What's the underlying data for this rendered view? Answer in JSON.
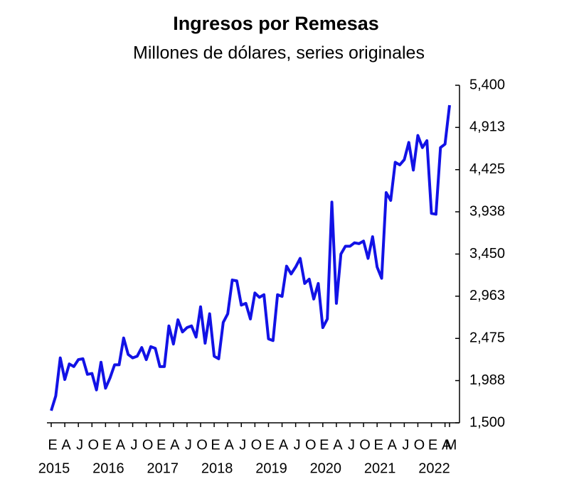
{
  "chart_data": {
    "type": "line",
    "title": "Ingresos por Remesas",
    "subtitle": "Millones de dólares, series originales",
    "categories": [
      "E",
      null,
      null,
      "A",
      null,
      null,
      "J",
      null,
      null,
      "O",
      null,
      null,
      "E",
      null,
      null,
      "A",
      null,
      null,
      "J",
      null,
      null,
      "O",
      null,
      null,
      "E",
      null,
      null,
      "A",
      null,
      null,
      "J",
      null,
      null,
      "O",
      null,
      null,
      "E",
      null,
      null,
      "A",
      null,
      null,
      "J",
      null,
      null,
      "O",
      null,
      null,
      "E",
      null,
      null,
      "A",
      null,
      null,
      "J",
      null,
      null,
      "O",
      null,
      null,
      "E",
      null,
      null,
      "A",
      null,
      null,
      "J",
      null,
      null,
      "O",
      null,
      null,
      "E",
      null,
      null,
      "A",
      null,
      null,
      "J",
      null,
      null,
      "O",
      null,
      null,
      "E",
      null,
      null,
      "A",
      "M"
    ],
    "years": [
      "2015",
      "2016",
      "2017",
      "2018",
      "2019",
      "2020",
      "2021",
      "2022"
    ],
    "series": [
      {
        "color": "#1212e6",
        "values": [
          1640,
          1810,
          2250,
          2000,
          2180,
          2150,
          2230,
          2240,
          2060,
          2070,
          1880,
          2200,
          1900,
          2020,
          2170,
          2170,
          2480,
          2290,
          2250,
          2270,
          2370,
          2230,
          2380,
          2360,
          2150,
          2150,
          2620,
          2410,
          2690,
          2550,
          2600,
          2620,
          2490,
          2840,
          2420,
          2760,
          2270,
          2240,
          2660,
          2760,
          3150,
          3140,
          2860,
          2880,
          2700,
          3000,
          2950,
          2980,
          2470,
          2450,
          2980,
          2960,
          3310,
          3220,
          3300,
          3400,
          3110,
          3160,
          2930,
          3110,
          2600,
          2700,
          4050,
          2880,
          3450,
          3540,
          3540,
          3580,
          3570,
          3600,
          3400,
          3650,
          3300,
          3170,
          4160,
          4070,
          4510,
          4480,
          4540,
          4740,
          4420,
          4820,
          4680,
          4760,
          3920,
          3910,
          4680,
          4720,
          5170
        ]
      }
    ],
    "ylim": [
      1500,
      5400
    ],
    "yticks": [
      {
        "value": 1500,
        "label": "1,500"
      },
      {
        "value": 1988,
        "label": "1,988"
      },
      {
        "value": 2475,
        "label": "2,475"
      },
      {
        "value": 2963,
        "label": "2,963"
      },
      {
        "value": 3450,
        "label": "3,450"
      },
      {
        "value": 3938,
        "label": "3,938"
      },
      {
        "value": 4425,
        "label": "4,425"
      },
      {
        "value": 4913,
        "label": "4,913"
      },
      {
        "value": 5400,
        "label": "5,400"
      }
    ]
  }
}
